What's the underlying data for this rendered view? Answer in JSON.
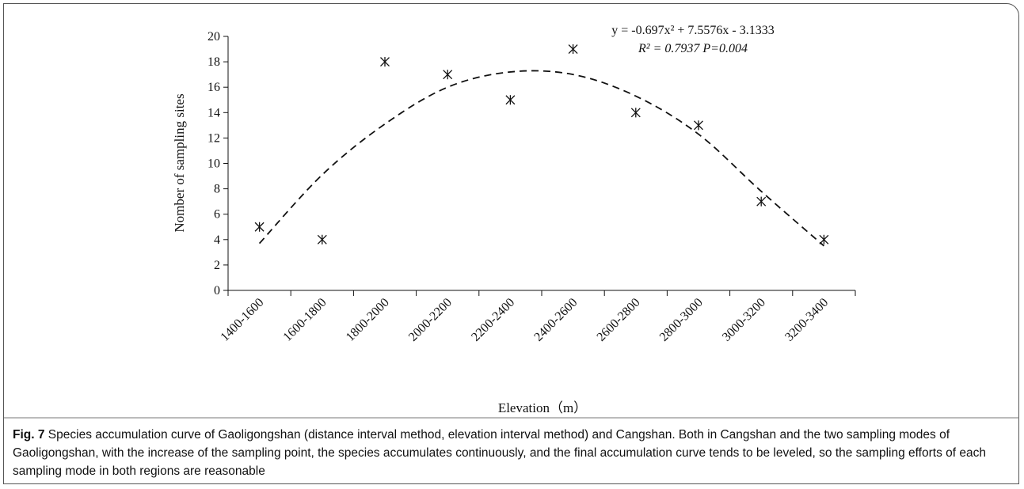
{
  "chart_data": {
    "type": "scatter",
    "categories": [
      "1400-1600",
      "1600-1800",
      "1800-2000",
      "2000-2200",
      "2200-2400",
      "2400-2600",
      "2600-2800",
      "2800-3000",
      "3000-3200",
      "3200-3400"
    ],
    "values": [
      5,
      4,
      18,
      17,
      15,
      19,
      14,
      13,
      7,
      4
    ],
    "trend": [
      3.7,
      9.1,
      13.1,
      16,
      17.2,
      17,
      15.3,
      12.3,
      7.8,
      3.5
    ],
    "color": "#111111",
    "ylim": [
      0,
      20
    ],
    "yticks": [
      0,
      2,
      4,
      6,
      8,
      10,
      12,
      14,
      16,
      18,
      20
    ],
    "ylabel": "Nomber of sampling sites",
    "xlabel": "Elevation（m）",
    "annotations": [
      "y = -0.697x² + 7.5576x - 3.1333",
      "R² = 0.7937 P=0.004"
    ]
  },
  "caption": {
    "label": "Fig. 7",
    "text": "Species accumulation curve of Gaoligongshan (distance interval method, elevation interval method) and Cangshan. Both in Cangshan and the two sampling modes of Gaoligongshan, with the increase of the sampling point, the species accumulates continuously, and the final accumulation curve tends to be leveled, so the sampling efforts of each sampling mode in both regions are reasonable"
  }
}
